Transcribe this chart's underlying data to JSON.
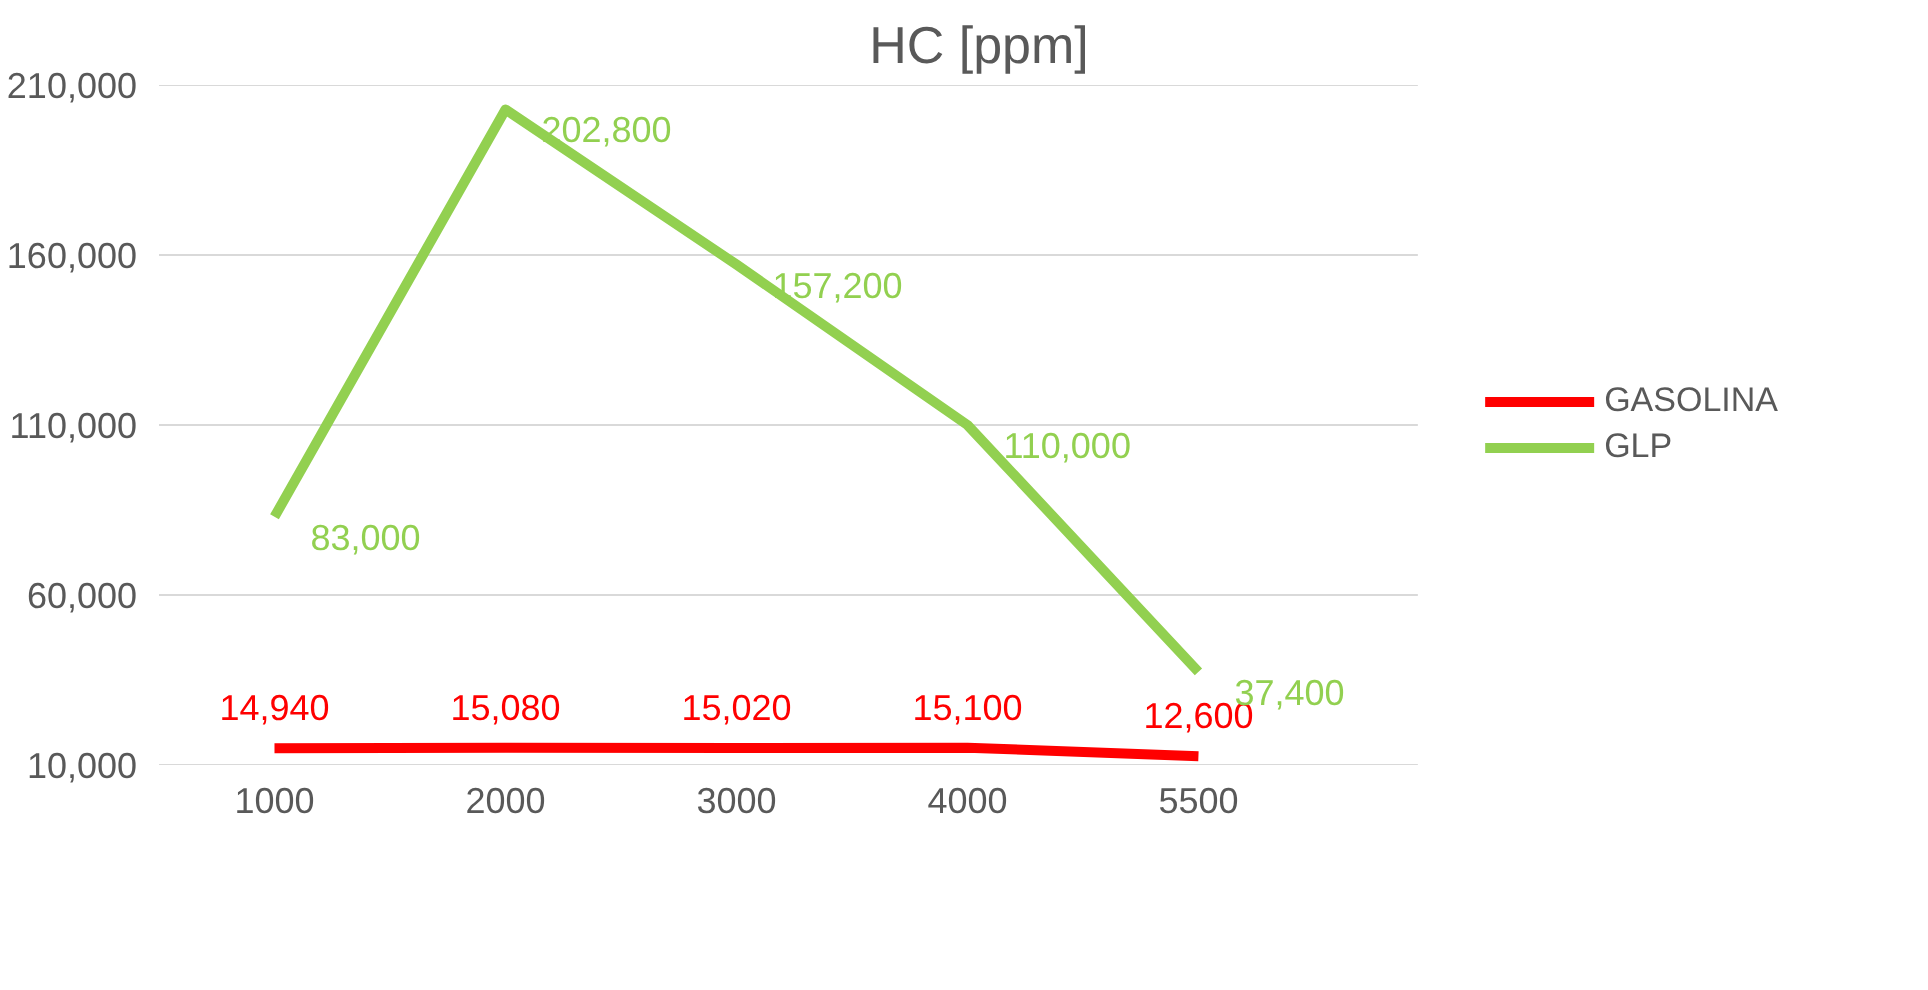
{
  "chart_data": {
    "type": "line",
    "title": "HC [ppm]",
    "categories": [
      "1000",
      "2000",
      "3000",
      "4000",
      "5500"
    ],
    "series": [
      {
        "name": "GASOLINA",
        "color": "#ff0000",
        "values": [
          14940,
          15080,
          15020,
          15100,
          12600
        ],
        "value_labels": [
          "14,940",
          "15,080",
          "15,020",
          "15,100",
          "12,600"
        ]
      },
      {
        "name": "GLP",
        "color": "#92d050",
        "values": [
          83000,
          202800,
          157200,
          110000,
          37400
        ],
        "value_labels": [
          "83,000",
          "202,800",
          "157,200",
          "110,000",
          "37,400"
        ]
      }
    ],
    "ylim": [
      10000,
      210000
    ],
    "yticks": [
      {
        "value": 10000,
        "label": "10,000"
      },
      {
        "value": 60000,
        "label": "60,000"
      },
      {
        "value": 110000,
        "label": "110,000"
      },
      {
        "value": 160000,
        "label": "160,000"
      },
      {
        "value": 210000,
        "label": "210,000"
      }
    ],
    "grid": "y",
    "legend": "right",
    "marker": "none",
    "line_style": "solid"
  }
}
